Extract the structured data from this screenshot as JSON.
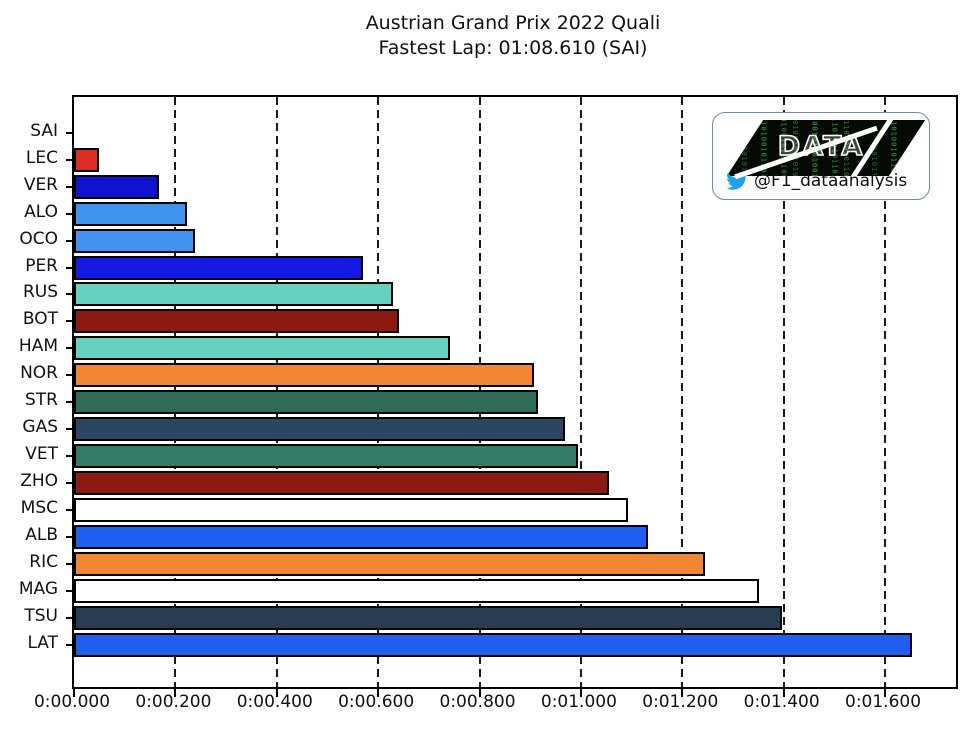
{
  "title": {
    "line1": "Austrian Grand Prix 2022 Quali",
    "line2": "Fastest Lap: 01:08.610 (SAI)"
  },
  "watermark": {
    "logo_text": "DATA",
    "twitter_handle": "@F1_dataanalysis",
    "twitter_blue": "#1da1f2",
    "border_color": "#6b88b8",
    "matrix_pattern": "0110100101101001011010010110"
  },
  "chart_data": {
    "type": "bar",
    "orientation": "horizontal",
    "title": "Austrian Grand Prix 2022 Quali",
    "subtitle": "Fastest Lap: 01:08.610 (SAI)",
    "xlabel": "",
    "ylabel": "",
    "xlim": [
      0,
      1.74
    ],
    "grid": "vertical dashed black, behind bars",
    "legend": "none",
    "x_tick_values": [
      0.0,
      0.2,
      0.4,
      0.6,
      0.8,
      1.0,
      1.2,
      1.4,
      1.6
    ],
    "x_tick_labels": [
      "0:00.000",
      "0:00.200",
      "0:00.400",
      "0:00.600",
      "0:00.800",
      "0:01.000",
      "0:01.200",
      "0:01.400",
      "0:01.600"
    ],
    "categories": [
      "SAI",
      "LEC",
      "VER",
      "ALO",
      "OCO",
      "PER",
      "RUS",
      "BOT",
      "HAM",
      "NOR",
      "STR",
      "GAS",
      "VET",
      "ZHO",
      "MSC",
      "ALB",
      "RIC",
      "MAG",
      "TSU",
      "LAT"
    ],
    "values": [
      0.0,
      0.049,
      0.168,
      0.222,
      0.238,
      0.57,
      0.63,
      0.642,
      0.742,
      0.908,
      0.916,
      0.969,
      0.995,
      1.056,
      1.092,
      1.132,
      1.245,
      1.352,
      1.396,
      1.654
    ],
    "bar_colors": [
      "#dc2d23",
      "#dc2d23",
      "#1112d0",
      "#3f93ef",
      "#3f93ef",
      "#1519e6",
      "#66d1bf",
      "#8d1a12",
      "#66d1bf",
      "#f28733",
      "#2e6c59",
      "#2b4562",
      "#347a65",
      "#8d1a12",
      "#ffffff",
      "#1e5ff0",
      "#f28733",
      "#ffffff",
      "#263c50",
      "#1e5ff0"
    ],
    "bar_edge_color": "#000000"
  }
}
